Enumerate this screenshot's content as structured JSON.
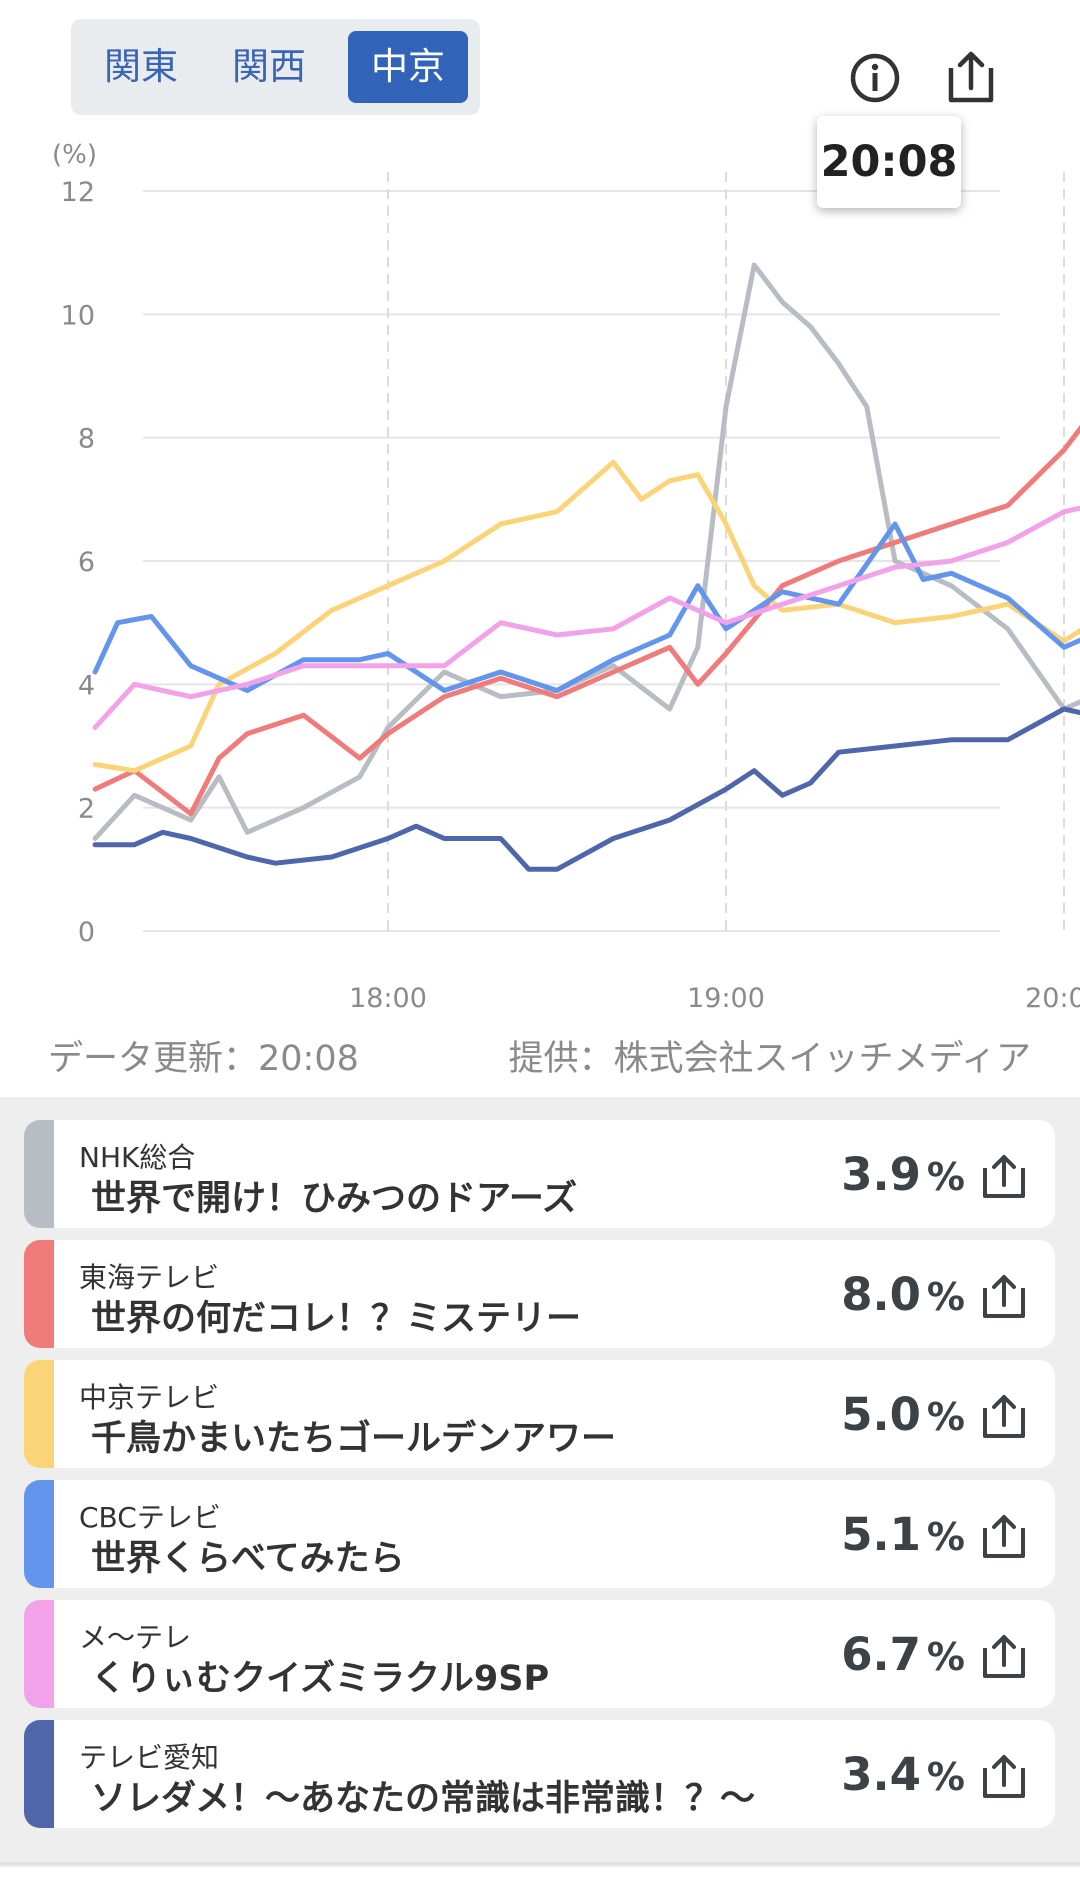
{
  "tabs": [
    {
      "label": "関東",
      "active": false
    },
    {
      "label": "関西",
      "active": false
    },
    {
      "label": "中京",
      "active": true
    }
  ],
  "icons": {
    "info": "info-icon",
    "share": "share-icon"
  },
  "tooltip_time": "20:08",
  "footer": {
    "updated": "データ更新：20:08",
    "provider": "提供：株式会社スイッチメディア"
  },
  "chart_data": {
    "type": "line",
    "ylabel": "(%)",
    "ylim": [
      0,
      12
    ],
    "yticks": [
      "0",
      "2",
      "4",
      "6",
      "8",
      "10",
      "12"
    ],
    "xtick_labels": [
      "18:00",
      "19:00",
      "20:00"
    ],
    "x_range": [
      "17:08",
      "20:08"
    ],
    "grid": true,
    "series": [
      {
        "name": "NHK総合",
        "color": "#b8bdc4",
        "x": [
          "17:08",
          "17:15",
          "17:25",
          "17:30",
          "17:35",
          "17:45",
          "17:55",
          "18:00",
          "18:10",
          "18:20",
          "18:30",
          "18:40",
          "18:50",
          "18:55",
          "19:00",
          "19:05",
          "19:10",
          "19:15",
          "19:20",
          "19:25",
          "19:30",
          "19:40",
          "19:50",
          "20:00",
          "20:05",
          "20:08"
        ],
        "values": [
          1.5,
          2.2,
          1.8,
          2.5,
          1.6,
          2.0,
          2.5,
          3.3,
          4.2,
          3.8,
          3.9,
          4.3,
          3.6,
          4.6,
          8.5,
          10.8,
          10.2,
          9.8,
          9.2,
          8.5,
          6.0,
          5.6,
          4.9,
          3.6,
          3.8,
          3.9
        ]
      },
      {
        "name": "東海テレビ",
        "color": "#ef7b7b",
        "x": [
          "17:08",
          "17:15",
          "17:25",
          "17:30",
          "17:35",
          "17:45",
          "17:55",
          "18:00",
          "18:10",
          "18:20",
          "18:30",
          "18:40",
          "18:50",
          "18:55",
          "19:00",
          "19:10",
          "19:20",
          "19:30",
          "19:40",
          "19:50",
          "20:00",
          "20:05",
          "20:08"
        ],
        "values": [
          2.3,
          2.6,
          1.9,
          2.8,
          3.2,
          3.5,
          2.8,
          3.2,
          3.8,
          4.1,
          3.8,
          4.2,
          4.6,
          4.0,
          4.5,
          5.6,
          6.0,
          6.3,
          6.6,
          6.9,
          7.8,
          8.4,
          8.0
        ]
      },
      {
        "name": "中京テレビ",
        "color": "#fbd47a",
        "x": [
          "17:08",
          "17:15",
          "17:25",
          "17:30",
          "17:40",
          "17:50",
          "18:00",
          "18:10",
          "18:20",
          "18:30",
          "18:40",
          "18:45",
          "18:50",
          "18:55",
          "19:00",
          "19:05",
          "19:10",
          "19:20",
          "19:30",
          "19:40",
          "19:50",
          "20:00",
          "20:05",
          "20:08"
        ],
        "values": [
          2.7,
          2.6,
          3.0,
          4.0,
          4.5,
          5.2,
          5.6,
          6.0,
          6.6,
          6.8,
          7.6,
          7.0,
          7.3,
          7.4,
          6.6,
          5.6,
          5.2,
          5.3,
          5.0,
          5.1,
          5.3,
          4.7,
          5.0,
          5.0
        ]
      },
      {
        "name": "CBCテレビ",
        "color": "#6495ed",
        "x": [
          "17:08",
          "17:12",
          "17:18",
          "17:25",
          "17:35",
          "17:45",
          "17:55",
          "18:00",
          "18:10",
          "18:20",
          "18:30",
          "18:40",
          "18:50",
          "18:55",
          "19:00",
          "19:10",
          "19:20",
          "19:30",
          "19:35",
          "19:40",
          "19:50",
          "20:00",
          "20:05",
          "20:08"
        ],
        "values": [
          4.2,
          5.0,
          5.1,
          4.3,
          3.9,
          4.4,
          4.4,
          4.5,
          3.9,
          4.2,
          3.9,
          4.4,
          4.8,
          5.6,
          4.9,
          5.5,
          5.3,
          6.6,
          5.7,
          5.8,
          5.4,
          4.6,
          4.8,
          5.1
        ]
      },
      {
        "name": "メ〜テレ",
        "color": "#f2a2e8",
        "x": [
          "17:08",
          "17:15",
          "17:25",
          "17:35",
          "17:45",
          "17:55",
          "18:00",
          "18:10",
          "18:20",
          "18:30",
          "18:40",
          "18:50",
          "19:00",
          "19:10",
          "19:20",
          "19:30",
          "19:40",
          "19:50",
          "20:00",
          "20:05",
          "20:08"
        ],
        "values": [
          3.3,
          4.0,
          3.8,
          4.0,
          4.3,
          4.3,
          4.3,
          4.3,
          5.0,
          4.8,
          4.9,
          5.4,
          5.0,
          5.3,
          5.6,
          5.9,
          6.0,
          6.3,
          6.8,
          6.9,
          6.7
        ]
      },
      {
        "name": "テレビ愛知",
        "color": "#4f67aa",
        "x": [
          "17:08",
          "17:15",
          "17:20",
          "17:25",
          "17:35",
          "17:40",
          "17:50",
          "18:00",
          "18:05",
          "18:10",
          "18:20",
          "18:25",
          "18:30",
          "18:40",
          "18:50",
          "19:00",
          "19:05",
          "19:10",
          "19:15",
          "19:20",
          "19:30",
          "19:40",
          "19:50",
          "20:00",
          "20:05",
          "20:08"
        ],
        "values": [
          1.4,
          1.4,
          1.6,
          1.5,
          1.2,
          1.1,
          1.2,
          1.5,
          1.7,
          1.5,
          1.5,
          1.0,
          1.0,
          1.5,
          1.8,
          2.3,
          2.6,
          2.2,
          2.4,
          2.9,
          3.0,
          3.1,
          3.1,
          3.6,
          3.5,
          3.4
        ]
      }
    ]
  },
  "programs": [
    {
      "channel": "NHK総合",
      "program": "世界で開け！ひみつのドアーズ",
      "rating": "3.9",
      "unit": "%",
      "color": "#b8bdc4"
    },
    {
      "channel": "東海テレビ",
      "program": "世界の何だコレ！？ミステリー",
      "rating": "8.0",
      "unit": "%",
      "color": "#ef7b7b"
    },
    {
      "channel": "中京テレビ",
      "program": "千鳥かまいたちゴールデンアワー",
      "rating": "5.0",
      "unit": "%",
      "color": "#fbd47a"
    },
    {
      "channel": "CBCテレビ",
      "program": "世界くらべてみたら",
      "rating": "5.1",
      "unit": "%",
      "color": "#6495ed"
    },
    {
      "channel": "メ〜テレ",
      "program": "くりぃむクイズミラクル9SP",
      "rating": "6.7",
      "unit": "%",
      "color": "#f2a2e8"
    },
    {
      "channel": "テレビ愛知",
      "program": "ソレダメ！〜あなたの常識は非常識！？〜",
      "rating": "3.4",
      "unit": "%",
      "color": "#4f67aa"
    }
  ]
}
